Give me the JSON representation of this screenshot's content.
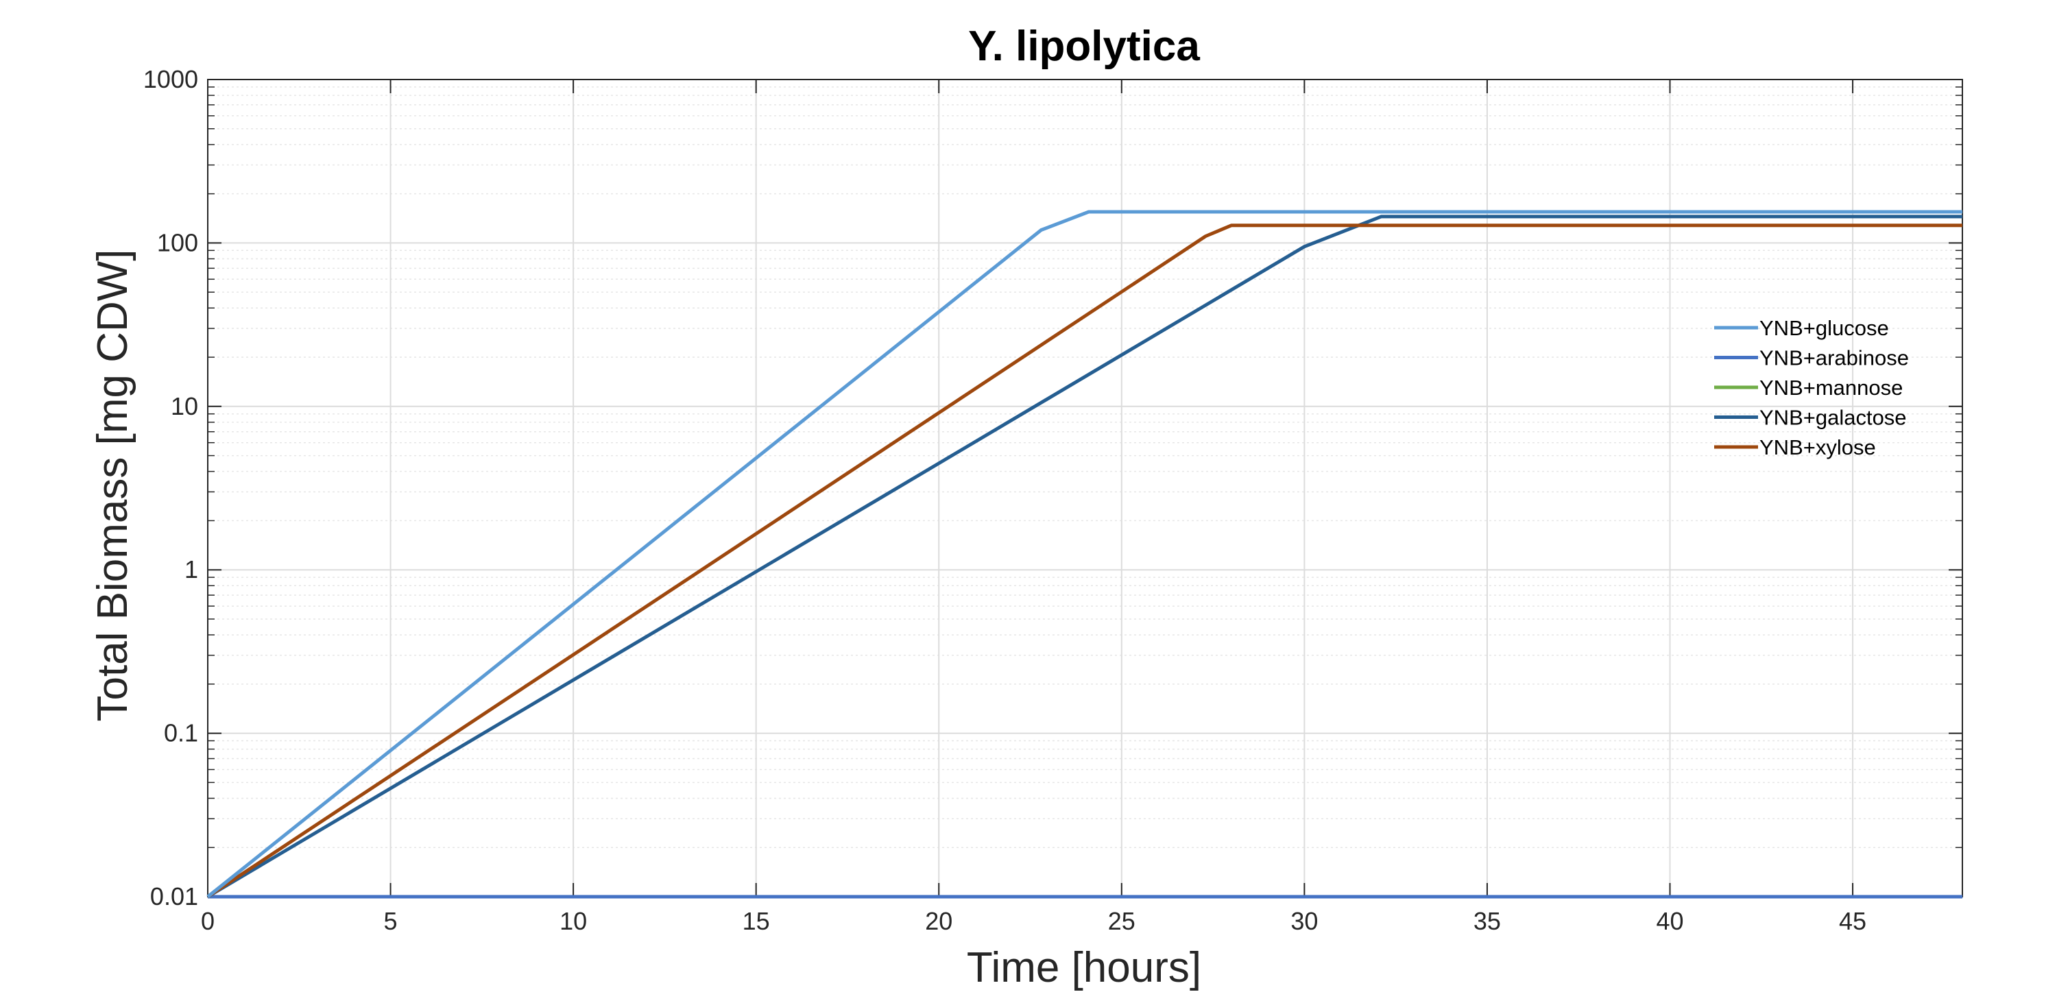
{
  "chart_data": {
    "type": "line",
    "title": "Y. lipolytica",
    "xlabel": "Time [hours]",
    "ylabel": "Total Biomass [mg CDW]",
    "xlim": [
      0,
      48
    ],
    "ylim": [
      0.01,
      1000
    ],
    "yscale": "log",
    "grid": true,
    "legend_position": "right",
    "xticks": [
      0,
      5,
      10,
      15,
      20,
      25,
      30,
      35,
      40,
      45
    ],
    "xtick_labels": [
      "0",
      "5",
      "10",
      "15",
      "20",
      "25",
      "30",
      "35",
      "40",
      "45"
    ],
    "yticks": [
      0.01,
      0.1,
      1,
      10,
      100,
      1000
    ],
    "ytick_labels": [
      "0.01",
      "0.1",
      "1",
      "10",
      "100",
      "1000"
    ],
    "series": [
      {
        "name": "YNB+glucose",
        "color": "#5b9bd5",
        "x": [
          0,
          22.8,
          24.1,
          48
        ],
        "y": [
          0.01,
          120,
          155,
          155
        ]
      },
      {
        "name": "YNB+arabinose",
        "color": "#4472c4",
        "x": [
          0,
          48
        ],
        "y": [
          0.01,
          0.01
        ]
      },
      {
        "name": "YNB+mannose",
        "color": "#70ad47",
        "x": [
          0,
          48
        ],
        "y": [
          0.01,
          0.01
        ]
      },
      {
        "name": "YNB+galactose",
        "color": "#255e91",
        "x": [
          0,
          30,
          32.1,
          48
        ],
        "y": [
          0.01,
          95,
          145,
          145
        ]
      },
      {
        "name": "YNB+xylose",
        "color": "#9e480e",
        "x": [
          0,
          27.3,
          28,
          48
        ],
        "y": [
          0.01,
          110,
          128,
          128
        ]
      }
    ]
  }
}
